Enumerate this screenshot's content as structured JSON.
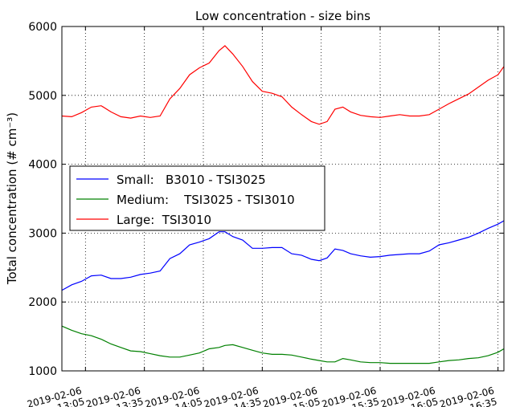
{
  "chart_data": {
    "type": "line",
    "title": "Low concentration - size bins",
    "ylabel": "Total concentration (# cm⁻³)",
    "x": [
      "2019-02-06 12:53",
      "2019-02-06 12:58",
      "2019-02-06 13:03",
      "2019-02-06 13:08",
      "2019-02-06 13:13",
      "2019-02-06 13:18",
      "2019-02-06 13:23",
      "2019-02-06 13:28",
      "2019-02-06 13:33",
      "2019-02-06 13:38",
      "2019-02-06 13:43",
      "2019-02-06 13:48",
      "2019-02-06 13:53",
      "2019-02-06 13:58",
      "2019-02-06 14:03",
      "2019-02-06 14:08",
      "2019-02-06 14:13",
      "2019-02-06 14:16",
      "2019-02-06 14:20",
      "2019-02-06 14:25",
      "2019-02-06 14:30",
      "2019-02-06 14:35",
      "2019-02-06 14:40",
      "2019-02-06 14:45",
      "2019-02-06 14:50",
      "2019-02-06 14:55",
      "2019-02-06 15:00",
      "2019-02-06 15:04",
      "2019-02-06 15:08",
      "2019-02-06 15:12",
      "2019-02-06 15:16",
      "2019-02-06 15:20",
      "2019-02-06 15:25",
      "2019-02-06 15:30",
      "2019-02-06 15:35",
      "2019-02-06 15:40",
      "2019-02-06 15:45",
      "2019-02-06 15:50",
      "2019-02-06 15:55",
      "2019-02-06 16:00",
      "2019-02-06 16:05",
      "2019-02-06 16:10",
      "2019-02-06 16:15",
      "2019-02-06 16:20",
      "2019-02-06 16:25",
      "2019-02-06 16:30",
      "2019-02-06 16:35",
      "2019-02-06 16:38"
    ],
    "series": [
      {
        "name": "Small:   B3010 - TSI3025",
        "color": "#0000ff",
        "values": [
          2170,
          2250,
          2300,
          2380,
          2390,
          2340,
          2340,
          2360,
          2400,
          2420,
          2450,
          2630,
          2700,
          2830,
          2870,
          2920,
          3020,
          3020,
          2950,
          2900,
          2780,
          2780,
          2790,
          2790,
          2700,
          2680,
          2620,
          2600,
          2640,
          2770,
          2750,
          2700,
          2670,
          2650,
          2660,
          2680,
          2690,
          2700,
          2700,
          2740,
          2830,
          2860,
          2900,
          2940,
          3000,
          3070,
          3130,
          3180
        ]
      },
      {
        "name": "Medium:    TSI3025 - TSI3010",
        "color": "#008000",
        "values": [
          1650,
          1590,
          1540,
          1510,
          1460,
          1390,
          1340,
          1290,
          1280,
          1250,
          1220,
          1200,
          1200,
          1230,
          1260,
          1320,
          1340,
          1370,
          1380,
          1340,
          1300,
          1260,
          1240,
          1240,
          1230,
          1200,
          1170,
          1150,
          1130,
          1130,
          1180,
          1160,
          1130,
          1120,
          1120,
          1110,
          1110,
          1110,
          1110,
          1110,
          1130,
          1150,
          1160,
          1180,
          1190,
          1220,
          1270,
          1320
        ]
      },
      {
        "name": "Large:  TSI3010",
        "color": "#ff0000",
        "values": [
          4700,
          4690,
          4750,
          4830,
          4850,
          4760,
          4690,
          4670,
          4700,
          4680,
          4700,
          4950,
          5100,
          5300,
          5400,
          5470,
          5650,
          5720,
          5600,
          5420,
          5200,
          5060,
          5030,
          4980,
          4830,
          4720,
          4620,
          4580,
          4620,
          4800,
          4830,
          4760,
          4710,
          4690,
          4680,
          4700,
          4720,
          4700,
          4700,
          4720,
          4800,
          4880,
          4950,
          5020,
          5120,
          5220,
          5300,
          5420
        ]
      }
    ],
    "xlim": [
      "2019-02-06 12:53",
      "2019-02-06 16:38"
    ],
    "xticks": [
      "2019-02-06 13:05",
      "2019-02-06 13:35",
      "2019-02-06 14:05",
      "2019-02-06 14:35",
      "2019-02-06 15:05",
      "2019-02-06 15:35",
      "2019-02-06 16:05",
      "2019-02-06 16:35"
    ],
    "ylim": [
      1000,
      6000
    ],
    "yticks": [
      1000,
      2000,
      3000,
      4000,
      5000,
      6000
    ],
    "grid": true,
    "legend": "center left"
  }
}
